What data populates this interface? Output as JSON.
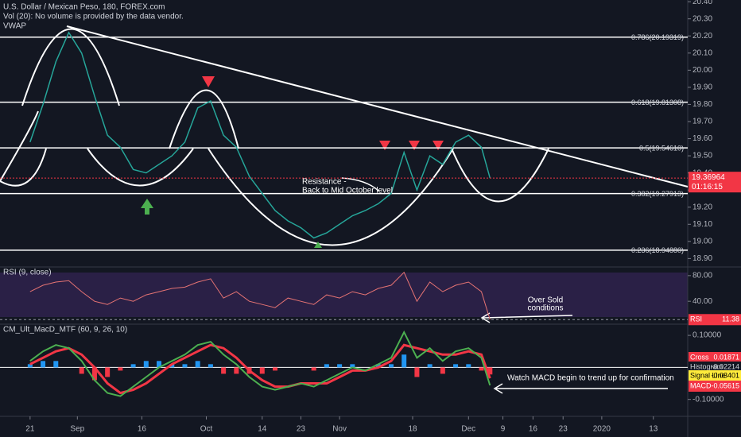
{
  "header": {
    "title": "U.S. Dollar / Mexican Peso, 180, FOREX.com",
    "volume_note": "Vol (20): No volume is provided by the data vendor.",
    "indicator": "VWAP"
  },
  "chart_data": [
    {
      "type": "line",
      "panel": "price",
      "x": [
        0,
        3,
        6,
        9,
        12,
        15,
        18,
        21,
        24,
        27,
        30,
        33,
        36,
        39,
        42,
        45,
        48,
        51,
        54,
        57,
        60,
        63,
        66,
        69,
        72,
        75,
        78,
        81,
        84,
        87,
        90,
        93,
        96,
        99,
        102,
        105,
        107
      ],
      "series": [
        {
          "color": "#26a69a",
          "values": [
            19.58,
            19.8,
            20.05,
            20.22,
            20.1,
            19.85,
            19.62,
            19.55,
            19.42,
            19.4,
            19.45,
            19.5,
            19.58,
            19.78,
            19.82,
            19.62,
            19.55,
            19.38,
            19.28,
            19.18,
            19.12,
            19.08,
            19.02,
            19.05,
            19.1,
            19.15,
            19.18,
            19.22,
            19.28,
            19.52,
            19.3,
            19.5,
            19.45,
            19.58,
            19.62,
            19.55,
            19.37
          ]
        }
      ],
      "xlim": [
        -7,
        153
      ],
      "xticks": [
        {
          "value": 0,
          "label": "21"
        },
        {
          "value": 11,
          "label": "Sep"
        },
        {
          "value": 26,
          "label": "16"
        },
        {
          "value": 41,
          "label": "Oct"
        },
        {
          "value": 54,
          "label": "14"
        },
        {
          "value": 63,
          "label": "23"
        },
        {
          "value": 72,
          "label": "Nov"
        },
        {
          "value": 89,
          "label": "18"
        },
        {
          "value": 102,
          "label": "Dec"
        },
        {
          "value": 110,
          "label": "9"
        },
        {
          "value": 117,
          "label": "16"
        },
        {
          "value": 124,
          "label": "23"
        },
        {
          "value": 133,
          "label": "2020"
        },
        {
          "value": 145,
          "label": "13"
        }
      ],
      "ylim": [
        18.86,
        20.41
      ],
      "yticks": [
        {
          "value": 18.9,
          "label": "18.90"
        },
        {
          "value": 19.0,
          "label": "19.00"
        },
        {
          "value": 19.1,
          "label": "19.10"
        },
        {
          "value": 19.2,
          "label": "19.20"
        },
        {
          "value": 19.3,
          "label": "19.30"
        },
        {
          "value": 19.4,
          "label": "19.40"
        },
        {
          "value": 19.5,
          "label": "19.50"
        },
        {
          "value": 19.6,
          "label": "19.60"
        },
        {
          "value": 19.7,
          "label": "19.70"
        },
        {
          "value": 19.8,
          "label": "19.80"
        },
        {
          "value": 19.9,
          "label": "19.90"
        },
        {
          "value": 20.0,
          "label": "20.00"
        },
        {
          "value": 20.1,
          "label": "20.10"
        },
        {
          "value": 20.2,
          "label": "20.20"
        },
        {
          "value": 20.3,
          "label": "20.30"
        },
        {
          "value": 20.4,
          "label": "20.40"
        }
      ],
      "levels": [
        {
          "label": "0.786(20.19319)",
          "value": 20.19319
        },
        {
          "label": "0.618(19.81308)",
          "value": 19.81308
        },
        {
          "label": "0.5(19.54610)",
          "value": 19.5461
        },
        {
          "label": "0.382(19.27913)",
          "value": 19.27913
        },
        {
          "label": "0.236(18.94880)",
          "value": 18.9488
        }
      ],
      "last_price": 19.36964,
      "countdown": "01:16:15",
      "annotations": {
        "resistance": [
          "Resistance -",
          "Back to Mid October level"
        ]
      }
    },
    {
      "type": "line",
      "panel": "rsi",
      "title": "RSI (9, close)",
      "x": [
        0,
        3,
        6,
        9,
        12,
        15,
        18,
        21,
        24,
        27,
        30,
        33,
        36,
        39,
        42,
        45,
        48,
        51,
        54,
        57,
        60,
        63,
        66,
        69,
        72,
        75,
        78,
        81,
        84,
        87,
        90,
        93,
        96,
        99,
        102,
        105,
        107
      ],
      "series": [
        {
          "name": "RSI",
          "color": "#e57373",
          "values": [
            55,
            65,
            70,
            72,
            55,
            40,
            35,
            45,
            40,
            50,
            55,
            60,
            62,
            70,
            75,
            45,
            55,
            40,
            35,
            30,
            45,
            40,
            35,
            50,
            45,
            55,
            50,
            60,
            65,
            85,
            40,
            70,
            55,
            65,
            70,
            55,
            11.38
          ]
        }
      ],
      "xlim": [
        -7,
        153
      ],
      "ylim": [
        8,
        91
      ],
      "yticks": [
        {
          "value": 80,
          "label": "80.00"
        },
        {
          "value": 40,
          "label": "40.00"
        }
      ],
      "annotations": {
        "oversold": [
          "Over Sold",
          "conditions"
        ]
      }
    },
    {
      "type": "macd",
      "panel": "macd",
      "title": "CM_Ult_MacD_MTF (60, 9, 26, 10)",
      "x": [
        0,
        3,
        6,
        9,
        12,
        15,
        18,
        21,
        24,
        27,
        30,
        33,
        36,
        39,
        42,
        45,
        48,
        51,
        54,
        57,
        60,
        63,
        66,
        69,
        72,
        75,
        78,
        81,
        84,
        87,
        90,
        93,
        96,
        99,
        102,
        105,
        107
      ],
      "series": [
        {
          "name": "Histogram",
          "color": "#2196f3",
          "values": [
            0.01,
            0.02,
            0.02,
            0,
            -0.02,
            -0.04,
            -0.03,
            -0.01,
            0.01,
            0.02,
            0.02,
            0.01,
            0.01,
            0.02,
            0.01,
            -0.02,
            -0.02,
            -0.02,
            -0.02,
            -0.01,
            0,
            0,
            -0.01,
            0.01,
            0.01,
            0.01,
            0,
            0.01,
            0.01,
            0.04,
            -0.03,
            0.01,
            -0.02,
            0.01,
            0.01,
            -0.01,
            -0.02214
          ]
        },
        {
          "name": "Signal Line",
          "color": "#f23645",
          "values": [
            0.01,
            0.03,
            0.05,
            0.06,
            0.04,
            0.0,
            -0.05,
            -0.08,
            -0.07,
            -0.05,
            -0.02,
            0.01,
            0.03,
            0.05,
            0.07,
            0.06,
            0.03,
            -0.01,
            -0.04,
            -0.06,
            -0.06,
            -0.05,
            -0.05,
            -0.05,
            -0.03,
            -0.01,
            -0.01,
            0.0,
            0.02,
            0.07,
            0.06,
            0.05,
            0.04,
            0.04,
            0.05,
            0.04,
            -0.03401
          ]
        },
        {
          "name": "MACD",
          "color": "#4caf50",
          "values": [
            0.02,
            0.05,
            0.07,
            0.06,
            0.02,
            -0.04,
            -0.08,
            -0.09,
            -0.06,
            -0.03,
            0.0,
            0.02,
            0.04,
            0.07,
            0.08,
            0.04,
            0.01,
            -0.03,
            -0.06,
            -0.07,
            -0.06,
            -0.05,
            -0.06,
            -0.04,
            -0.02,
            0.0,
            -0.01,
            0.01,
            0.03,
            0.11,
            0.03,
            0.06,
            0.02,
            0.05,
            0.06,
            0.03,
            -0.05615
          ]
        }
      ],
      "cross": {
        "name": "Cross",
        "value": 0.01871
      },
      "xlim": [
        -7,
        153
      ],
      "ylim": [
        -0.143,
        0.13
      ],
      "yticks": [
        {
          "value": 0.1,
          "label": "0.10000"
        },
        {
          "value": -0.1,
          "label": "-0.10000"
        }
      ],
      "annotations": {
        "note": "Watch MACD begin to trend up for confirmation"
      }
    }
  ]
}
